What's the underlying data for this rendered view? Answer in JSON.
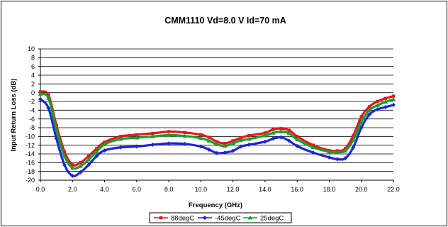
{
  "chart_data": {
    "type": "line",
    "title": "CMM1110 Vd=8.0 V Id=70 mA",
    "xlabel": "Frequency (GHz)",
    "ylabel": "Input Return Loss (dB)",
    "xlim": [
      0,
      22
    ],
    "ylim": [
      -20,
      10
    ],
    "x_ticks": [
      0,
      2,
      4,
      6,
      8,
      10,
      12,
      14,
      16,
      18,
      20,
      22
    ],
    "x_tick_labels": [
      "0.0",
      "2.0",
      "4.0",
      "6.0",
      "8.0",
      "10.0",
      "12.0",
      "14.0",
      "16.0",
      "18.0",
      "20.0",
      "22.0"
    ],
    "y_ticks": [
      10,
      8,
      6,
      4,
      2,
      0,
      -2,
      -4,
      -6,
      -8,
      -10,
      -12,
      -14,
      -16,
      -18,
      -20
    ],
    "y_tick_labels": [
      "10",
      "8",
      "6",
      "4",
      "2",
      "0",
      "-2",
      "-4",
      "-6",
      "-8",
      "-10",
      "-12",
      "-14",
      "-16",
      "-18",
      "-20"
    ],
    "grid": "horizontal",
    "legend": "bottom",
    "x": [
      0.0,
      0.5,
      1.0,
      1.5,
      2.0,
      2.5,
      3.0,
      3.5,
      4.0,
      5.0,
      6.0,
      7.0,
      8.0,
      9.0,
      10.0,
      10.5,
      11.0,
      11.5,
      12.0,
      12.5,
      13.0,
      14.0,
      14.5,
      15.0,
      15.5,
      16.0,
      17.0,
      18.0,
      18.5,
      19.0,
      19.5,
      20.0,
      20.5,
      21.0,
      21.5,
      22.0
    ],
    "series": [
      {
        "name": "88degC",
        "color": "#e8141b",
        "marker": "square",
        "values": [
          0.2,
          -0.5,
          -7.5,
          -13.5,
          -16.5,
          -16.0,
          -14.5,
          -12.8,
          -11.3,
          -10.0,
          -9.6,
          -9.3,
          -8.9,
          -9.1,
          -9.6,
          -10.2,
          -11.2,
          -11.6,
          -11.0,
          -10.3,
          -9.8,
          -9.2,
          -8.4,
          -8.2,
          -8.6,
          -10.0,
          -12.0,
          -13.2,
          -13.3,
          -12.8,
          -9.8,
          -5.5,
          -3.2,
          -2.0,
          -1.3,
          -0.8
        ]
      },
      {
        "name": "-45degC",
        "color": "#1c24d8",
        "marker": "diamond",
        "values": [
          -1.5,
          -3.5,
          -10.5,
          -16.5,
          -19.0,
          -18.2,
          -16.5,
          -14.5,
          -13.2,
          -12.5,
          -12.3,
          -11.9,
          -11.6,
          -11.7,
          -12.3,
          -13.0,
          -13.8,
          -13.7,
          -13.3,
          -12.3,
          -11.9,
          -11.2,
          -10.5,
          -10.2,
          -11.0,
          -12.2,
          -13.7,
          -14.8,
          -15.2,
          -15.0,
          -12.5,
          -8.0,
          -5.0,
          -3.8,
          -3.3,
          -2.8
        ]
      },
      {
        "name": "25degC",
        "color": "#16a12a",
        "marker": "triangle",
        "values": [
          -0.3,
          -1.2,
          -8.5,
          -14.5,
          -17.2,
          -16.8,
          -15.3,
          -13.5,
          -11.8,
          -10.6,
          -10.3,
          -10.0,
          -9.7,
          -9.9,
          -10.4,
          -11.0,
          -11.8,
          -12.2,
          -11.6,
          -10.9,
          -10.6,
          -9.8,
          -9.2,
          -8.9,
          -9.3,
          -10.7,
          -12.5,
          -13.5,
          -13.6,
          -13.3,
          -10.8,
          -6.7,
          -4.0,
          -2.9,
          -2.1,
          -1.5
        ]
      }
    ]
  }
}
